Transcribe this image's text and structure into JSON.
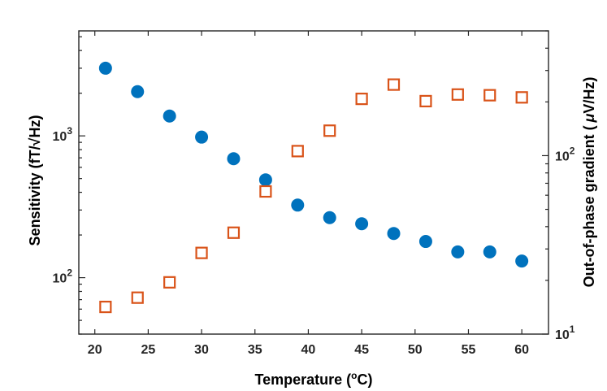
{
  "chart_data": {
    "type": "scatter",
    "xlabel_prefix": "Temperature (",
    "xlabel_super": "o",
    "xlabel_suffix": "C)",
    "ylabel_left_prefix": "Sensitivity (fT/",
    "ylabel_left_radical": "√",
    "ylabel_left_suffix": "Hz)",
    "ylabel_right_prefix": "Out-of-phase gradient (",
    "ylabel_right_mu": "μ",
    "ylabel_right_suffix": "V/Hz)",
    "xlim": [
      18.5,
      62.5
    ],
    "xticks": [
      20,
      25,
      30,
      35,
      40,
      45,
      50,
      55,
      60
    ],
    "ylim_left": [
      40,
      5500
    ],
    "ylim_right": [
      10,
      500
    ],
    "left_ticks": [
      {
        "value": 100,
        "base": "10",
        "exp": "2"
      },
      {
        "value": 1000,
        "base": "10",
        "exp": "3"
      }
    ],
    "right_ticks": [
      {
        "value": 10,
        "base": "10",
        "exp": "1"
      },
      {
        "value": 100,
        "base": "10",
        "exp": "2"
      }
    ],
    "series": [
      {
        "name": "Sensitivity",
        "axis": "left",
        "marker": "filled-circle",
        "color": "#0072BD",
        "x": [
          21,
          24,
          27,
          30,
          33,
          36,
          39,
          42,
          45,
          48,
          51,
          54,
          57,
          60
        ],
        "y": [
          3000,
          2050,
          1380,
          980,
          690,
          490,
          325,
          265,
          240,
          205,
          180,
          152,
          152,
          131
        ]
      },
      {
        "name": "Out-of-phase gradient",
        "axis": "right",
        "marker": "open-square",
        "color": "#D95319",
        "x": [
          21,
          24,
          27,
          30,
          33,
          36,
          39,
          42,
          45,
          48,
          51,
          54,
          57,
          60
        ],
        "y": [
          14.2,
          16.0,
          19.5,
          28.5,
          37,
          63,
          106,
          138,
          208,
          250,
          202,
          220,
          218,
          212
        ]
      }
    ]
  }
}
